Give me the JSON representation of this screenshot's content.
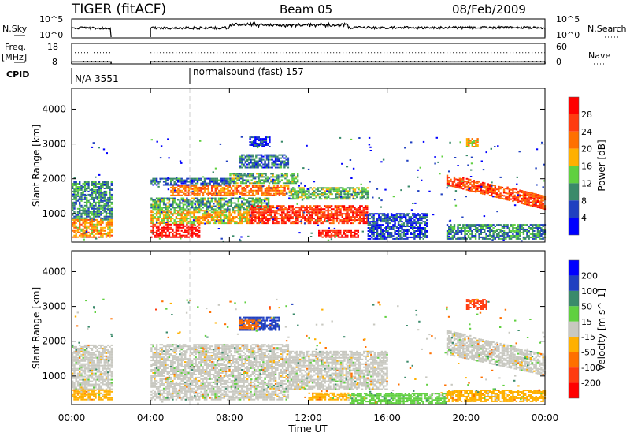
{
  "header": {
    "title": "TIGER (fitACF)",
    "beam": "Beam 05",
    "date": "08/Feb/2009"
  },
  "nsky_panel": {
    "label": "N.Sky",
    "right_label": "N.Search",
    "left_ticks": [
      "10^5",
      "10^0"
    ],
    "right_ticks": [
      "10^5",
      "10^0"
    ]
  },
  "freq_panel": {
    "label_line1": "Freq.",
    "label_line2": "[MHz]",
    "right_label": "Nave",
    "left_ticks": [
      "18",
      "8"
    ],
    "right_ticks": [
      "60",
      "0"
    ],
    "freq_solid_mhz": 9,
    "freq_dotted_mhz": 13.5,
    "nave_solid": 8
  },
  "cpid": {
    "label": "CPID",
    "segments": [
      {
        "start_hour": 0,
        "text": "N/A 3551"
      },
      {
        "start_hour": 6,
        "text": "normalsound (fast) 157"
      }
    ]
  },
  "chart_data": [
    {
      "type": "heatmap",
      "title": "Power",
      "xlabel": "Time UT",
      "ylabel": "Slant Range [km]",
      "xlim": [
        0,
        24
      ],
      "ylim": [
        180,
        4600
      ],
      "x_ticks": [
        "00:00",
        "04:00",
        "08:00",
        "12:00",
        "16:00",
        "20:00",
        "00:00"
      ],
      "y_ticks": [
        "1000",
        "2000",
        "3000",
        "4000"
      ],
      "colorbar": {
        "label": "Power [dB]",
        "ticks": [
          "28",
          "24",
          "20",
          "16",
          "12",
          "8",
          "4"
        ],
        "colors": [
          "#ff0000",
          "#ff3c10",
          "#ff7000",
          "#ffb000",
          "#60d040",
          "#3a8a6a",
          "#2040c0",
          "#0000ff"
        ]
      },
      "data_gaps_hours": [
        [
          2,
          4
        ]
      ],
      "echo_regions": [
        {
          "t": [
            0,
            2
          ],
          "r": [
            800,
            1900
          ],
          "v": 10
        },
        {
          "t": [
            0,
            2
          ],
          "r": [
            300,
            800
          ],
          "v": 20
        },
        {
          "t": [
            4,
            6.5
          ],
          "r": [
            300,
            700
          ],
          "v": 30
        },
        {
          "t": [
            4,
            9
          ],
          "r": [
            700,
            1100
          ],
          "v": 18
        },
        {
          "t": [
            4,
            10
          ],
          "r": [
            1100,
            1450
          ],
          "v": 12
        },
        {
          "t": [
            5,
            11
          ],
          "r": [
            1500,
            1800
          ],
          "v": 22
        },
        {
          "t": [
            4,
            8
          ],
          "r": [
            1800,
            2000
          ],
          "v": 8
        },
        {
          "t": [
            8,
            11.5
          ],
          "r": [
            1850,
            2150
          ],
          "v": 12
        },
        {
          "t": [
            8.5,
            11
          ],
          "r": [
            2300,
            2700
          ],
          "v": 8
        },
        {
          "t": [
            9,
            10
          ],
          "r": [
            2900,
            3200
          ],
          "v": 5
        },
        {
          "t": [
            9,
            15
          ],
          "r": [
            700,
            1200
          ],
          "v": 27
        },
        {
          "t": [
            11,
            15
          ],
          "r": [
            1400,
            1750
          ],
          "v": 13
        },
        {
          "t": [
            12.5,
            14.5
          ],
          "r": [
            300,
            500
          ],
          "v": 29
        },
        {
          "t": [
            15,
            18
          ],
          "r": [
            250,
            1000
          ],
          "v": 6
        },
        {
          "t": [
            19,
            24
          ],
          "r": [
            250,
            700
          ],
          "v": 10
        },
        {
          "t": [
            20,
            20.6
          ],
          "r": [
            2900,
            3150
          ],
          "v": 18
        }
      ],
      "diagonal_regions": [
        {
          "t": [
            19,
            24
          ],
          "r_start": [
            1800,
            2100
          ],
          "r_end": [
            1100,
            1500
          ],
          "v": 25
        }
      ]
    },
    {
      "type": "heatmap",
      "title": "Velocity",
      "xlabel": "Time UT",
      "ylabel": "Slant Range [km]",
      "xlim": [
        0,
        24
      ],
      "ylim": [
        180,
        4600
      ],
      "x_ticks": [
        "00:00",
        "04:00",
        "08:00",
        "12:00",
        "16:00",
        "20:00",
        "00:00"
      ],
      "y_ticks": [
        "1000",
        "2000",
        "3000",
        "4000"
      ],
      "colorbar": {
        "label": "Velocity [m s^-1]",
        "ticks": [
          "200",
          "100",
          "50",
          "15",
          "-15",
          "-50",
          "-100",
          "-200"
        ],
        "colors": [
          "#0000ff",
          "#2040c0",
          "#3a8a6a",
          "#60d040",
          "#c8c8c0",
          "#ffb000",
          "#ff7000",
          "#ff3c10",
          "#ff0000"
        ]
      },
      "data_gaps_hours": [
        [
          2,
          4
        ]
      ],
      "echo_regions": [
        {
          "t": [
            0,
            2
          ],
          "r": [
            600,
            1900
          ],
          "v": 0
        },
        {
          "t": [
            0,
            2
          ],
          "r": [
            300,
            600
          ],
          "v": -40
        },
        {
          "t": [
            4,
            11
          ],
          "r": [
            300,
            1900
          ],
          "v": 0
        },
        {
          "t": [
            8.5,
            10.5
          ],
          "r": [
            2300,
            2700
          ],
          "v": 150
        },
        {
          "t": [
            8.5,
            9.5
          ],
          "r": [
            2350,
            2600
          ],
          "v": -80
        },
        {
          "t": [
            11,
            16
          ],
          "r": [
            600,
            1700
          ],
          "v": 0
        },
        {
          "t": [
            12,
            14
          ],
          "r": [
            300,
            500
          ],
          "v": -40
        },
        {
          "t": [
            14,
            19
          ],
          "r": [
            200,
            500
          ],
          "v": 30
        },
        {
          "t": [
            19,
            24
          ],
          "r": [
            250,
            600
          ],
          "v": -30
        },
        {
          "t": [
            20,
            21
          ],
          "r": [
            2900,
            3200
          ],
          "v": -150
        }
      ],
      "diagonal_regions": [
        {
          "t": [
            19,
            24
          ],
          "r_start": [
            1600,
            2300
          ],
          "r_end": [
            1000,
            1600
          ],
          "v": 0
        }
      ]
    }
  ]
}
